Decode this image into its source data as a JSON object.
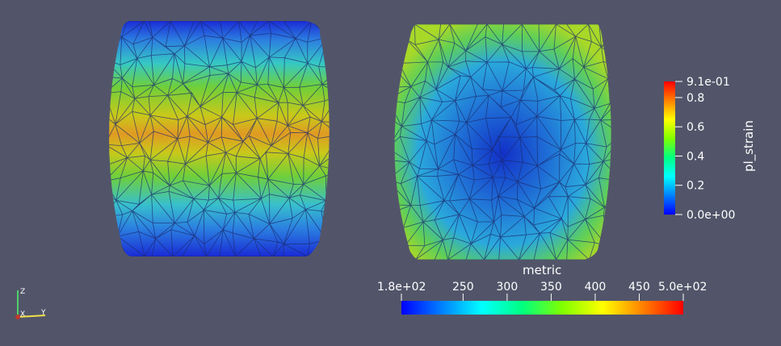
{
  "viewport": {
    "background": "#525569",
    "left_mesh": {
      "field": "pl_strain",
      "tint": "strain"
    },
    "right_mesh": {
      "field": "metric",
      "tint": "metric"
    }
  },
  "colorbars": {
    "pl_strain": {
      "title": "pl_strain",
      "min_label": "0.0e+00",
      "max_label": "9.1e-01",
      "ticks": [
        "0.2",
        "0.4",
        "0.6",
        "0.8"
      ],
      "range": [
        0.0,
        0.91
      ],
      "tick_values": [
        0.2,
        0.4,
        0.6,
        0.8
      ]
    },
    "metric": {
      "title": "metric",
      "min_label": "1.8e+02",
      "max_label": "5.0e+02",
      "ticks": [
        "250",
        "300",
        "350",
        "400",
        "450"
      ],
      "range": [
        180,
        500
      ],
      "tick_values": [
        250,
        300,
        350,
        400,
        450
      ]
    }
  },
  "colormap": [
    "#0000ff",
    "#0080ff",
    "#00ffff",
    "#00ff80",
    "#80ff00",
    "#ffff00",
    "#ff8000",
    "#ff0000"
  ],
  "orientation_axes": {
    "z": "Z",
    "x": "X",
    "y": "Y"
  }
}
